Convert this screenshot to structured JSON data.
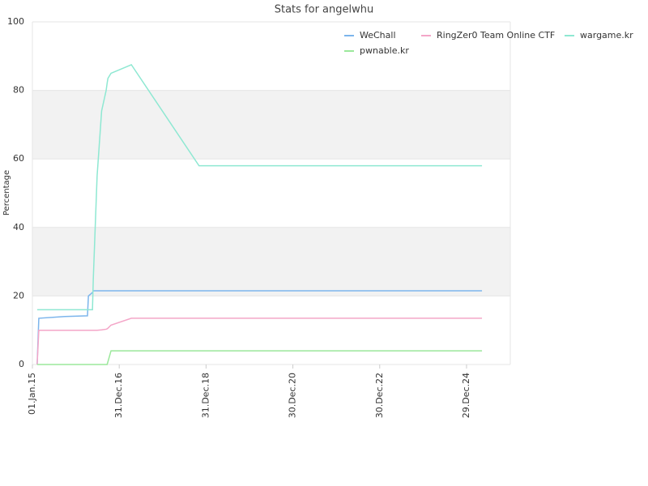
{
  "chart_data": {
    "type": "line",
    "title": "Stats for angelwhu",
    "y_label": "Percentage",
    "x": [
      "2015-02-10",
      "2015-02-24",
      "2015-10-01",
      "2016-04-08",
      "2016-04-16",
      "2016-05-20",
      "2016-05-27",
      "2016-06-28",
      "2016-08-05",
      "2016-09-12",
      "2016-09-20",
      "2016-09-27",
      "2016-10-23",
      "2017-04-12",
      "2018-11-02",
      "2025-05-08"
    ],
    "series": [
      {
        "name": "WeChall",
        "color": "#7cb5ec",
        "values": [
          0,
          13.5,
          14,
          14.2,
          20,
          21,
          21.5,
          21.5,
          21.5,
          21.5,
          21.5,
          21.5,
          21.5,
          21.5,
          21.5,
          21.5
        ]
      },
      {
        "name": "RingZer0 Team Online CTF",
        "color": "#f4a6c8",
        "values": [
          0,
          10,
          10,
          10,
          10,
          10,
          10,
          10,
          10.1,
          10.3,
          10.4,
          10.6,
          11.5,
          13.5,
          13.5,
          13.5
        ]
      },
      {
        "name": "wargame.kr",
        "color": "#8ee8d2",
        "values": [
          16,
          16,
          16,
          16,
          16,
          16,
          25,
          55,
          74,
          80,
          82,
          83.5,
          85,
          87.5,
          58,
          58
        ]
      },
      {
        "name": "pwnable.kr",
        "color": "#9be89b",
        "values": [
          0,
          0,
          0,
          0,
          0,
          0,
          0,
          0,
          0,
          0,
          0,
          0.8,
          4,
          4,
          4,
          4
        ]
      }
    ],
    "xlim": [
      "2015-01-01",
      "2026-01-01"
    ],
    "xticks": [
      {
        "value": "2015-01-01",
        "label": "01.Jan.15"
      },
      {
        "value": "2016-12-31",
        "label": "31.Dec.16"
      },
      {
        "value": "2018-12-31",
        "label": "31.Dec.18"
      },
      {
        "value": "2020-12-30",
        "label": "30.Dec.20"
      },
      {
        "value": "2022-12-30",
        "label": "30.Dec.22"
      },
      {
        "value": "2024-12-29",
        "label": "29.Dec.24"
      }
    ],
    "ylim": [
      0,
      100
    ],
    "yticks": [
      0,
      20,
      40,
      60,
      80,
      100
    ],
    "grid": true,
    "alternate_bands": true,
    "legend": "top-right"
  }
}
